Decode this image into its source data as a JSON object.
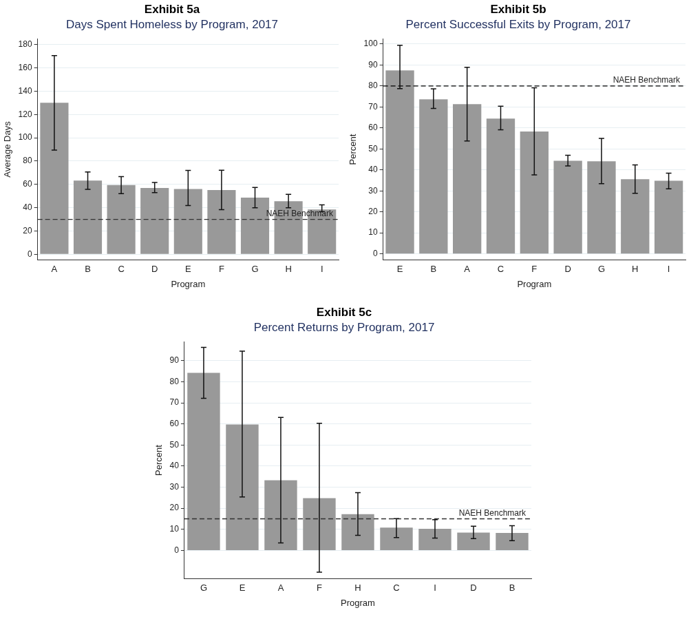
{
  "chart_data": [
    {
      "type": "bar",
      "title": "Exhibit 5a",
      "subtitle": "Days Spent Homeless by Program, 2017",
      "xlabel": "Program",
      "ylabel": "Average Days",
      "categories": [
        "A",
        "B",
        "C",
        "D",
        "E",
        "F",
        "G",
        "H",
        "I"
      ],
      "series": [
        {
          "color": "#999999",
          "values": [
            130,
            63.3,
            59.4,
            56.9,
            56.1,
            55.2,
            48.6,
            45.5,
            38.5
          ],
          "errors": [
            [
              89.4,
              170.5
            ],
            [
              55.7,
              70.6
            ],
            [
              52,
              66.6
            ],
            [
              53,
              61.7
            ],
            [
              41.8,
              72
            ],
            [
              38.3,
              72.2
            ],
            [
              40,
              57.3
            ],
            [
              40,
              51.5
            ],
            [
              36.6,
              42.4
            ]
          ]
        }
      ],
      "ylim": [
        -5,
        185
      ],
      "yticks": [
        0,
        20,
        40,
        60,
        80,
        100,
        120,
        140,
        160,
        180
      ],
      "grid": "y",
      "legend": false,
      "ref_lines": [
        {
          "axis": "y",
          "value": 30,
          "label": "NAEH Benchmark",
          "color": "#333333",
          "line_style": "dashed"
        }
      ]
    },
    {
      "type": "bar",
      "title": "Exhibit 5b",
      "subtitle": "Percent Successful Exits by Program, 2017",
      "xlabel": "Program",
      "ylabel": "Percent",
      "categories": [
        "E",
        "B",
        "A",
        "C",
        "F",
        "D",
        "G",
        "H",
        "I"
      ],
      "series": [
        {
          "color": "#999999",
          "values": [
            87.4,
            73.6,
            71.3,
            64.4,
            58.3,
            44.3,
            44.1,
            35.6,
            34.8
          ],
          "errors": [
            [
              78.7,
              99.4
            ],
            [
              69.3,
              78.6
            ],
            [
              53.8,
              88.9
            ],
            [
              59.1,
              70.3
            ],
            [
              37.6,
              79.1
            ],
            [
              41.9,
              47
            ],
            [
              33.4,
              55
            ],
            [
              28.8,
              42.4
            ],
            [
              31,
              38.4
            ]
          ]
        }
      ],
      "ylim": [
        -3,
        102.5
      ],
      "yticks": [
        0,
        10,
        20,
        30,
        40,
        50,
        60,
        70,
        80,
        90,
        100
      ],
      "grid": "y",
      "legend": false,
      "ref_lines": [
        {
          "axis": "y",
          "value": 80,
          "label": "NAEH Benchmark",
          "color": "#000000",
          "line_style": "dashed"
        }
      ]
    },
    {
      "type": "bar",
      "title": "Exhibit 5c",
      "subtitle": "Percent Returns by Program, 2017",
      "xlabel": "Program",
      "ylabel": "Percent",
      "categories": [
        "G",
        "E",
        "A",
        "F",
        "H",
        "C",
        "I",
        "D",
        "B"
      ],
      "series": [
        {
          "color": "#999999",
          "values": [
            84.2,
            59.7,
            33.3,
            24.8,
            17.2,
            10.8,
            10.3,
            8.5,
            8.3
          ],
          "errors": [
            [
              72.1,
              96.3
            ],
            [
              25.4,
              94.5
            ],
            [
              3.6,
              63.1
            ],
            [
              -10.3,
              60.3
            ],
            [
              7.2,
              27.4
            ],
            [
              6.1,
              15.1
            ],
            [
              5.9,
              14.6
            ],
            [
              5.6,
              11.5
            ],
            [
              4.6,
              11.7
            ]
          ]
        }
      ],
      "ylim": [
        -13.5,
        99
      ],
      "yticks": [
        0,
        10,
        20,
        30,
        40,
        50,
        60,
        70,
        80,
        90
      ],
      "grid": "y",
      "legend": false,
      "ref_lines": [
        {
          "axis": "y",
          "value": 15,
          "label": "NAEH Benchmark",
          "color": "#333333",
          "line_style": "dashed"
        }
      ]
    }
  ]
}
